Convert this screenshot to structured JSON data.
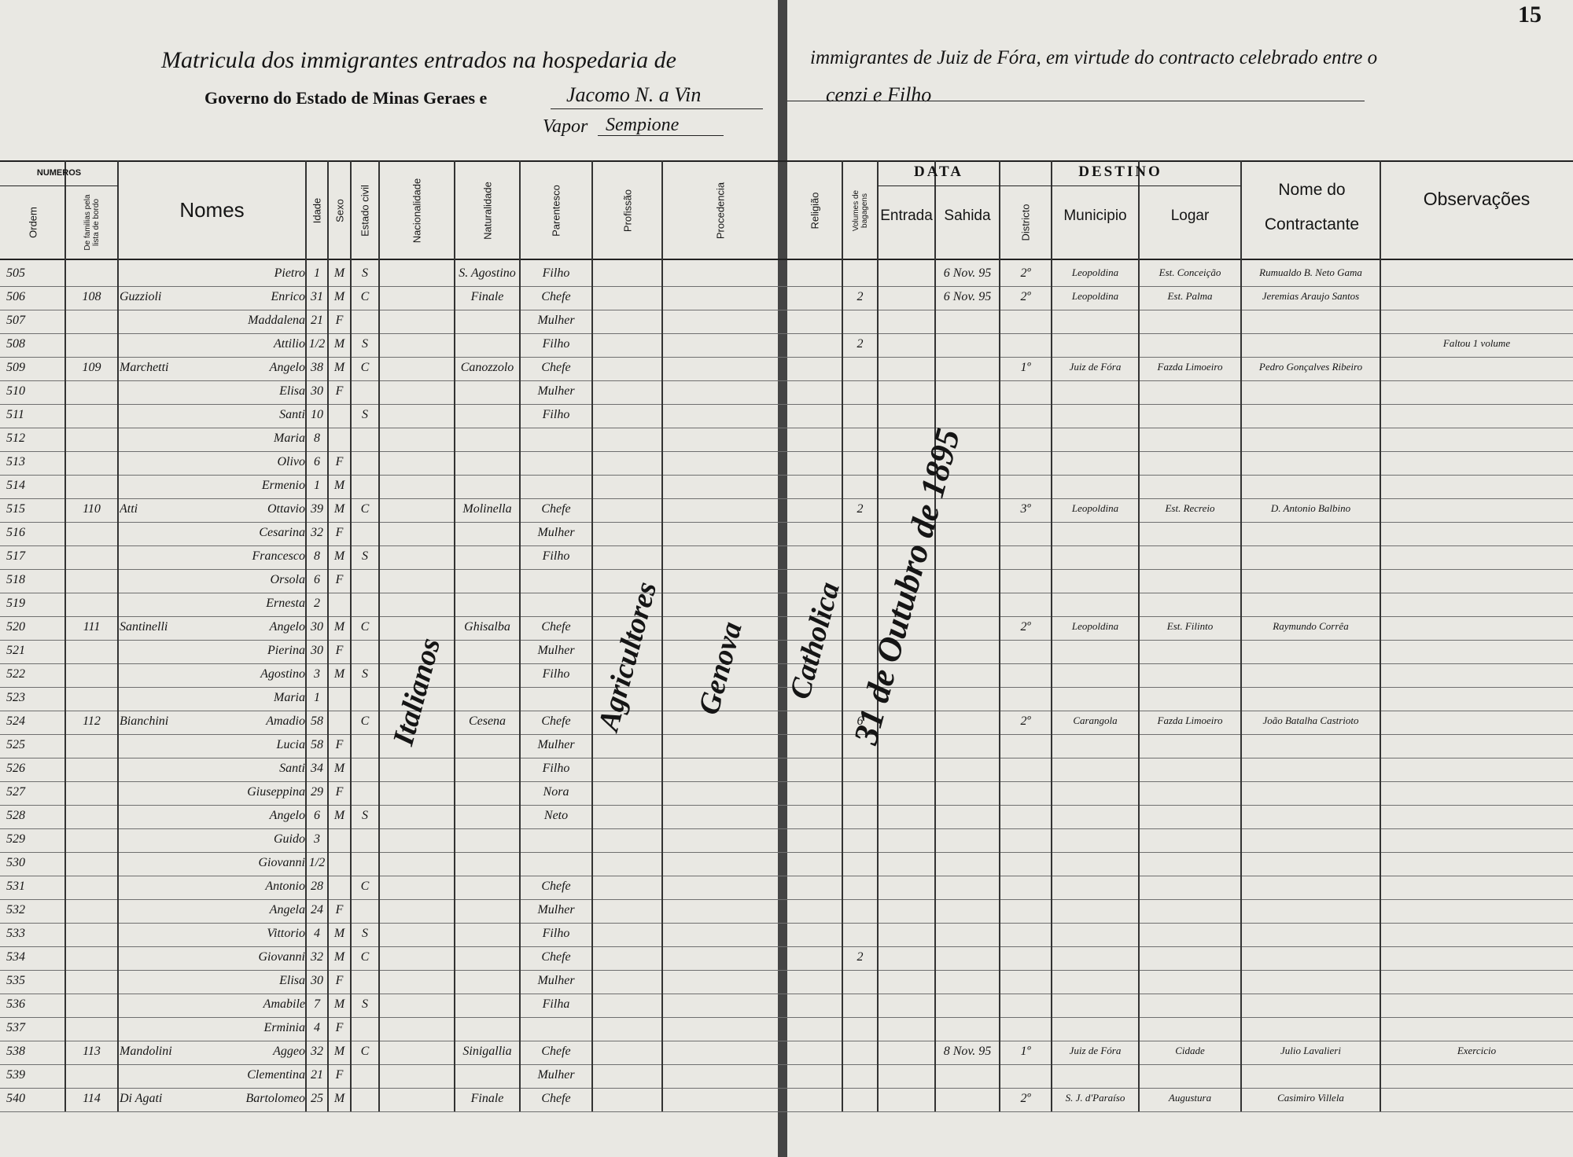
{
  "header": {
    "page_number": "15",
    "title_left": "Matricula dos immigrantes entrados na hospedaria de",
    "title_right": "immigrantes de Juiz de Fóra, em virtude do contracto celebrado entre o",
    "line2_printed": "Governo do Estado de Minas Geraes e",
    "line2_hand_left": "Jacomo N. a Vin",
    "line2_hand_right": "cenzi e Filho",
    "vapor_label": "Vapor",
    "vapor_name": "Sempione"
  },
  "columns": {
    "numeros": "NUMEROS",
    "ordem": "Ordem",
    "familias": "De familias pela lista de bordo",
    "nomes": "Nomes",
    "idade": "Idade",
    "sexo": "Sexo",
    "estado": "Estado civil",
    "nacionalidade": "Nacionalidade",
    "naturalidade": "Naturalidade",
    "parentesco": "Parentesco",
    "profissao": "Profissão",
    "procedencia": "Procedencia",
    "religiao": "Religião",
    "volumes": "Volumes de bagagens",
    "data": "DATA",
    "entrada": "Entrada",
    "sahida": "Sahida",
    "destino": "DESTINO",
    "districto": "Districto",
    "municipio": "Municipio",
    "logar": "Logar",
    "contractante": "Nome do Contractante",
    "observacoes": "Observações"
  },
  "vertical_notes": {
    "nacionalidade": "Italianos",
    "profissao": "Agricultores",
    "procedencia": "Genova",
    "religiao": "Catholica",
    "entrada": "31 de Outubro de 1895"
  },
  "rows": [
    {
      "ordem": "505",
      "nome": "Pietro",
      "idade": "1",
      "sexo": "M",
      "estado": "S",
      "naturalidade": "S. Agostino",
      "parentesco": "Filho",
      "sahida": "6 Nov. 95",
      "districto": "2º",
      "municipio": "Leopoldina",
      "logar": "Est. Conceição",
      "contractante": "Rumualdo B. Neto Gama"
    },
    {
      "ordem": "506",
      "familia": "108",
      "sobrenome": "Guzzioli",
      "nome": "Enrico",
      "idade": "31",
      "sexo": "M",
      "estado": "C",
      "naturalidade": "Finale",
      "parentesco": "Chefe",
      "volumes": "2",
      "sahida": "6 Nov. 95",
      "districto": "2º",
      "municipio": "Leopoldina",
      "logar": "Est. Palma",
      "contractante": "Jeremias Araujo Santos"
    },
    {
      "ordem": "507",
      "nome": "Maddalena",
      "idade": "21",
      "sexo": "F",
      "parentesco": "Mulher"
    },
    {
      "ordem": "508",
      "nome": "Attilio",
      "idade": "1/2",
      "sexo": "M",
      "estado": "S",
      "parentesco": "Filho",
      "volumes": "2",
      "observacoes": "Faltou 1 volume"
    },
    {
      "ordem": "509",
      "familia": "109",
      "sobrenome": "Marchetti",
      "nome": "Angelo",
      "idade": "38",
      "sexo": "M",
      "estado": "C",
      "naturalidade": "Canozzolo",
      "parentesco": "Chefe",
      "districto": "1º",
      "municipio": "Juiz de Fóra",
      "logar": "Fazda Limoeiro",
      "contractante": "Pedro Gonçalves Ribeiro"
    },
    {
      "ordem": "510",
      "nome": "Elisa",
      "idade": "30",
      "sexo": "F",
      "parentesco": "Mulher"
    },
    {
      "ordem": "511",
      "nome": "Santi",
      "idade": "10",
      "estado": "S",
      "parentesco": "Filho"
    },
    {
      "ordem": "512",
      "nome": "Maria",
      "idade": "8"
    },
    {
      "ordem": "513",
      "nome": "Olivo",
      "idade": "6",
      "sexo": "F"
    },
    {
      "ordem": "514",
      "nome": "Ermenio",
      "idade": "1",
      "sexo": "M"
    },
    {
      "ordem": "515",
      "familia": "110",
      "sobrenome": "Atti",
      "nome": "Ottavio",
      "idade": "39",
      "sexo": "M",
      "estado": "C",
      "naturalidade": "Molinella",
      "parentesco": "Chefe",
      "volumes": "2",
      "districto": "3º",
      "municipio": "Leopoldina",
      "logar": "Est. Recreio",
      "contractante": "D. Antonio Balbino"
    },
    {
      "ordem": "516",
      "nome": "Cesarina",
      "idade": "32",
      "sexo": "F",
      "parentesco": "Mulher"
    },
    {
      "ordem": "517",
      "nome": "Francesco",
      "idade": "8",
      "sexo": "M",
      "estado": "S",
      "parentesco": "Filho"
    },
    {
      "ordem": "518",
      "nome": "Orsola",
      "idade": "6",
      "sexo": "F"
    },
    {
      "ordem": "519",
      "nome": "Ernesta",
      "idade": "2"
    },
    {
      "ordem": "520",
      "familia": "111",
      "sobrenome": "Santinelli",
      "nome": "Angelo",
      "idade": "30",
      "sexo": "M",
      "estado": "C",
      "naturalidade": "Ghisalba",
      "parentesco": "Chefe",
      "districto": "2º",
      "municipio": "Leopoldina",
      "logar": "Est. Filinto",
      "contractante": "Raymundo Corrêa"
    },
    {
      "ordem": "521",
      "nome": "Pierina",
      "idade": "30",
      "sexo": "F",
      "parentesco": "Mulher"
    },
    {
      "ordem": "522",
      "nome": "Agostino",
      "idade": "3",
      "sexo": "M",
      "estado": "S",
      "parentesco": "Filho"
    },
    {
      "ordem": "523",
      "nome": "Maria",
      "idade": "1"
    },
    {
      "ordem": "524",
      "familia": "112",
      "sobrenome": "Bianchini",
      "nome": "Amadio",
      "idade": "58",
      "estado": "C",
      "naturalidade": "Cesena",
      "parentesco": "Chefe",
      "volumes": "6",
      "districto": "2º",
      "municipio": "Carangola",
      "logar": "Fazda Limoeiro",
      "contractante": "João Batalha Castrioto"
    },
    {
      "ordem": "525",
      "nome": "Lucia",
      "idade": "58",
      "sexo": "F",
      "parentesco": "Mulher"
    },
    {
      "ordem": "526",
      "nome": "Santi",
      "idade": "34",
      "sexo": "M",
      "parentesco": "Filho"
    },
    {
      "ordem": "527",
      "nome": "Giuseppina",
      "idade": "29",
      "sexo": "F",
      "parentesco": "Nora"
    },
    {
      "ordem": "528",
      "nome": "Angelo",
      "idade": "6",
      "sexo": "M",
      "estado": "S",
      "parentesco": "Neto"
    },
    {
      "ordem": "529",
      "nome": "Guido",
      "idade": "3"
    },
    {
      "ordem": "530",
      "nome": "Giovanni",
      "idade": "1/2"
    },
    {
      "ordem": "531",
      "nome": "Antonio",
      "idade": "28",
      "estado": "C",
      "parentesco": "Chefe"
    },
    {
      "ordem": "532",
      "nome": "Angela",
      "idade": "24",
      "sexo": "F",
      "parentesco": "Mulher"
    },
    {
      "ordem": "533",
      "nome": "Vittorio",
      "idade": "4",
      "sexo": "M",
      "estado": "S",
      "parentesco": "Filho"
    },
    {
      "ordem": "534",
      "nome": "Giovanni",
      "idade": "32",
      "sexo": "M",
      "estado": "C",
      "parentesco": "Chefe",
      "volumes": "2"
    },
    {
      "ordem": "535",
      "nome": "Elisa",
      "idade": "30",
      "sexo": "F",
      "parentesco": "Mulher"
    },
    {
      "ordem": "536",
      "nome": "Amabile",
      "idade": "7",
      "sexo": "M",
      "estado": "S",
      "parentesco": "Filha"
    },
    {
      "ordem": "537",
      "nome": "Erminia",
      "idade": "4",
      "sexo": "F"
    },
    {
      "ordem": "538",
      "familia": "113",
      "sobrenome": "Mandolini",
      "nome": "Aggeo",
      "idade": "32",
      "sexo": "M",
      "estado": "C",
      "naturalidade": "Sinigallia",
      "parentesco": "Chefe",
      "sahida": "8 Nov. 95",
      "districto": "1º",
      "municipio": "Juiz de Fóra",
      "logar": "Cidade",
      "contractante": "Julio Lavalieri",
      "observacoes": "Exercicio"
    },
    {
      "ordem": "539",
      "nome": "Clementina",
      "idade": "21",
      "sexo": "F",
      "parentesco": "Mulher"
    },
    {
      "ordem": "540",
      "familia": "114",
      "sobrenome": "Di Agati",
      "nome": "Bartolomeo",
      "idade": "25",
      "sexo": "M",
      "naturalidade": "Finale",
      "parentesco": "Chefe",
      "districto": "2º",
      "municipio": "S. J. d'Paraíso",
      "logar": "Augustura",
      "contractante": "Casimiro Villela"
    }
  ]
}
